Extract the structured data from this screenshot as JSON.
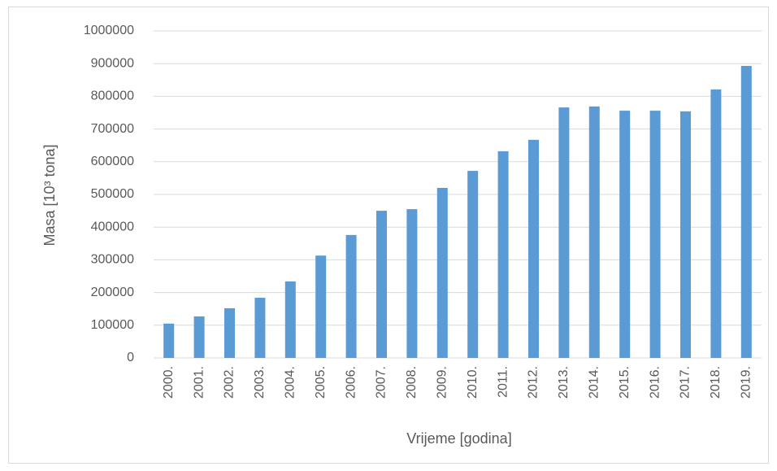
{
  "chart_data": {
    "type": "bar",
    "x_label": "Vrijeme [godina]",
    "y_label": "Masa [10³ tona]",
    "categories": [
      "2000.",
      "2001.",
      "2002.",
      "2003.",
      "2004.",
      "2005.",
      "2006.",
      "2007.",
      "2008.",
      "2009.",
      "2010.",
      "2011.",
      "2012.",
      "2013.",
      "2014.",
      "2015.",
      "2016.",
      "2017.",
      "2018.",
      "2019."
    ],
    "values": [
      105000,
      127000,
      152000,
      184000,
      234000,
      313000,
      376000,
      450000,
      455000,
      520000,
      572000,
      632000,
      667000,
      766000,
      769000,
      756000,
      756000,
      754000,
      821000,
      893000
    ],
    "color": "#5b9bd5",
    "ylim": [
      0,
      1000000
    ],
    "yticks": [
      0,
      100000,
      200000,
      300000,
      400000,
      500000,
      600000,
      700000,
      800000,
      900000,
      1000000
    ],
    "grid": true
  }
}
